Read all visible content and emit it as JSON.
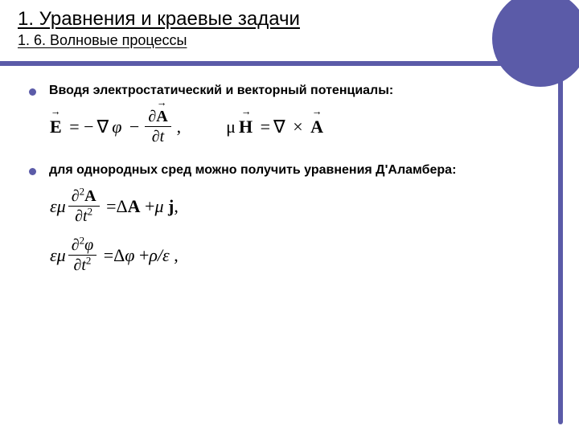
{
  "theme": {
    "accent": "#5b5ba8",
    "background": "#ffffff",
    "text": "#000000",
    "title_fontsize": 24,
    "subtitle_fontsize": 18,
    "body_fontsize": 16,
    "equation_fontsize": 22
  },
  "title": {
    "main": "1. Уравнения и краевые задачи",
    "sub": "1. 6. Волновые процессы"
  },
  "bullets": [
    {
      "text": "Вводя электростатический и векторный потенциалы:"
    },
    {
      "text": "для однородных сред можно получить уравнения Д'Аламбера:"
    }
  ],
  "equations": {
    "potentials": {
      "symbols": {
        "E": "E",
        "nabla": "∇",
        "phi": "φ",
        "A": "A",
        "t": "t",
        "mu": "μ",
        "H": "H",
        "cross": "×",
        "partial": "∂"
      },
      "display_E": "E = −∇φ − ∂A/∂t,",
      "display_H": "μH = ∇ × A"
    },
    "dalembert": {
      "symbols": {
        "eps": "ε",
        "mu": "μ",
        "A": "A",
        "t": "t",
        "Delta": "Δ",
        "j": "j",
        "phi": "φ",
        "rho": "ρ",
        "partial": "∂"
      },
      "display_A": "εμ ∂²A/∂t² = ΔA + μ j,",
      "display_phi": "εμ ∂²φ/∂t² = Δφ + ρ/ε ,"
    }
  }
}
